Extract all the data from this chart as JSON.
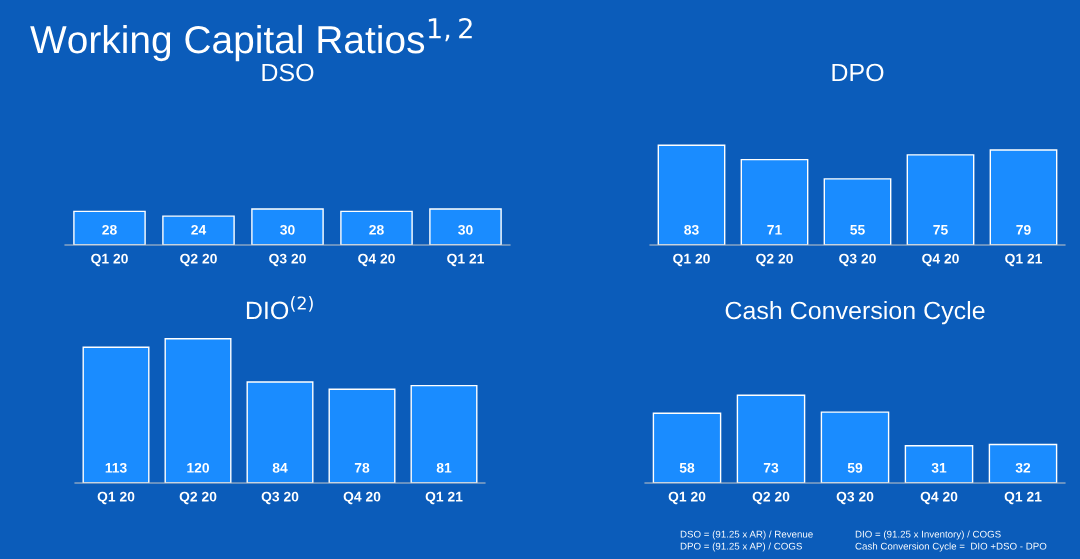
{
  "chart_data": [
    {
      "type": "bar",
      "title": "DSO",
      "categories": [
        "Q1 20",
        "Q2 20",
        "Q3 20",
        "Q4 20",
        "Q1 21"
      ],
      "values": [
        28,
        24,
        30,
        28,
        30
      ],
      "color": "#1a8cff",
      "data_labels": true,
      "annotations": [
        "Working Capital Ratios$^{1,2}$"
      ]
    },
    {
      "type": "bar",
      "title": "DPO",
      "categories": [
        "Q1 20",
        "Q2 20",
        "Q3 20",
        "Q4 20",
        "Q1 21"
      ],
      "values": [
        83,
        71,
        55,
        75,
        79
      ],
      "color": "#1a8cff",
      "data_labels": true
    },
    {
      "type": "bar",
      "title": "DIO$^{(2)}$",
      "categories": [
        "Q1 20",
        "Q2 20",
        "Q3 20",
        "Q4 20",
        "Q1 21"
      ],
      "values": [
        113,
        120,
        84,
        78,
        81
      ],
      "color": "#1a8cff",
      "data_labels": true
    },
    {
      "type": "bar",
      "title": "Cash Conversion Cycle",
      "categories": [
        "Q1 20",
        "Q2 20",
        "Q3 20",
        "Q4 20",
        "Q1 21"
      ],
      "values": [
        58,
        73,
        59,
        31,
        32
      ],
      "color": "#1a8cff",
      "data_labels": true,
      "annotations": [
        "DSO = (91.25 x AR) / Revenue",
        "DPO = (91.25 x AP) / COGS",
        "DIO = (91.25 x Inventory) / COGS",
        "Cash Conversion Cycle =  DIO +DSO - DPO"
      ]
    }
  ]
}
